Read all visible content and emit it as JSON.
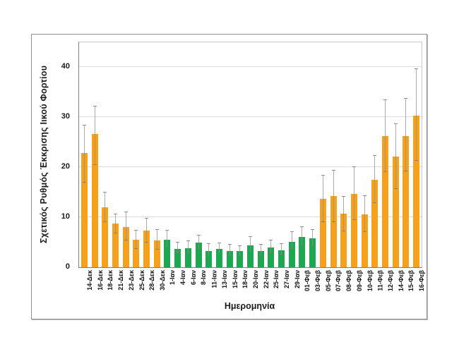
{
  "figure": {
    "y_axis_title": "Σχετικός Ρυθμός Έκκρισης Ιικού Φορτίου",
    "x_axis_title": "Ημερομηνία"
  },
  "chart_data": {
    "type": "bar",
    "title": "",
    "xlabel": "Ημερομηνία",
    "ylabel": "Σχετικός Ρυθμός Έκκρισης Ιικού Φορτίου",
    "ylim": [
      0,
      45
    ],
    "y_ticks": [
      0,
      10,
      20,
      30,
      40
    ],
    "grid": "horizontal",
    "legend": "none",
    "error_bars": true,
    "categories": [
      "14-Δεκ",
      "16-Δεκ",
      "18-Δεκ",
      "21-Δεκ",
      "23-Δεκ",
      "25-Δεκ",
      "28-Δεκ",
      "30-Δεκ",
      "1-Ιαν",
      "4-Ιαν",
      "6-Ιαν",
      "8-Ιαν",
      "11-Ιαν",
      "13-Ιαν",
      "15-Ιαν",
      "18-Ιαν",
      "20-Ιαν",
      "22-Ιαν",
      "25-Ιαν",
      "27-Ιαν",
      "29-Ιαν",
      "01-Φεβ",
      "03-Φεβ",
      "05-Φεβ",
      "07-Φεβ",
      "08-Φεβ",
      "09-Φεβ",
      "10-Φεβ",
      "11-Φεβ",
      "12-Φεβ",
      "14-Φεβ",
      "15-Φεβ",
      "16-Φεβ"
    ],
    "values": [
      22.9,
      26.6,
      12.0,
      8.7,
      8.1,
      5.5,
      7.4,
      5.3,
      5.5,
      3.7,
      3.8,
      4.9,
      3.2,
      3.7,
      3.2,
      3.2,
      4.4,
      3.2,
      3.9,
      3.4,
      5.1,
      6.0,
      5.8,
      13.7,
      14.2,
      10.7,
      14.7,
      10.6,
      17.5,
      26.2,
      22.1,
      26.3,
      30.4
    ],
    "error_low": [
      17.0,
      20.5,
      9.1,
      6.8,
      5.3,
      3.6,
      4.9,
      3.5,
      3.9,
      2.8,
      2.7,
      3.6,
      2.3,
      2.7,
      2.3,
      2.3,
      3.1,
      2.3,
      2.8,
      2.5,
      3.7,
      4.4,
      4.2,
      9.1,
      9.0,
      7.2,
      9.5,
      7.0,
      12.9,
      19.0,
      15.7,
      19.2,
      21.3
    ],
    "error_high": [
      28.4,
      32.1,
      15.0,
      10.6,
      11.0,
      7.3,
      9.8,
      7.5,
      7.4,
      4.9,
      5.2,
      6.3,
      4.6,
      4.8,
      4.5,
      4.3,
      6.1,
      4.5,
      5.4,
      4.6,
      7.0,
      8.0,
      7.5,
      18.3,
      19.3,
      14.1,
      20.0,
      14.2,
      22.3,
      33.4,
      28.6,
      33.7,
      39.6
    ],
    "bar_colors": [
      "orange",
      "orange",
      "orange",
      "orange",
      "orange",
      "orange",
      "orange",
      "orange",
      "green",
      "green",
      "green",
      "green",
      "green",
      "green",
      "green",
      "green",
      "green",
      "green",
      "green",
      "green",
      "green",
      "green",
      "green",
      "orange",
      "orange",
      "orange",
      "orange",
      "orange",
      "orange",
      "orange",
      "orange",
      "orange",
      "orange"
    ],
    "palette": {
      "orange": "#F5A11C",
      "green": "#1CA750",
      "error_bar": "#8F8F8F",
      "gridline": "#DCDCDC",
      "axis": "#7F7F7F"
    }
  }
}
